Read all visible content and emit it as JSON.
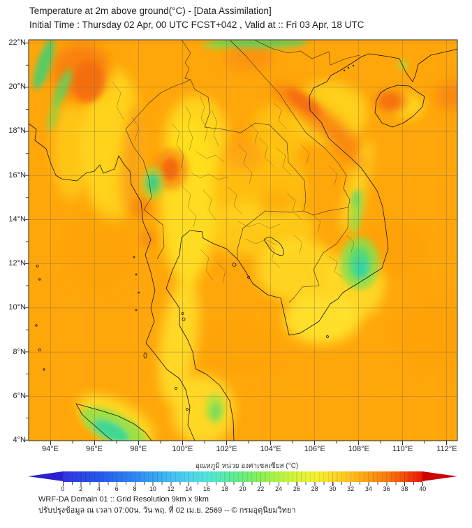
{
  "header": {
    "title": "Temperature at 2m above ground(°C) - [Data Assimilation]",
    "subtitle": "Initial Time : Thursday 02 Apr, 00 UTC FCST+042 , Valid at :: Fri 03 Apr, 18 UTC"
  },
  "map": {
    "lat_labels": [
      "22°N",
      "20°N",
      "18°N",
      "16°N",
      "14°N",
      "12°N",
      "10°N",
      "8°N",
      "6°N",
      "4°N"
    ],
    "lon_labels": [
      "94°E",
      "96°E",
      "98°E",
      "100°E",
      "102°E",
      "104°E",
      "106°E",
      "108°E",
      "110°E",
      "112°E"
    ],
    "sea_base_color": "#FFA60A",
    "land_warm_color": "#FFE135",
    "hot_spot_color": "#F4690B",
    "cool_spot_color": "#2FD6A8"
  },
  "colorbar": {
    "label": "อุณหภูมิ หน่วย องศาเซลเซียส (°C)",
    "ticks": [
      "0",
      "2",
      "4",
      "6",
      "8",
      "10",
      "12",
      "14",
      "16",
      "18",
      "20",
      "22",
      "24",
      "26",
      "28",
      "30",
      "32",
      "34",
      "36",
      "38",
      "40"
    ],
    "under_range_color": "#2a20cf",
    "over_range_color": "#cc0400"
  },
  "footer": {
    "line1": "WRF-DA Domain 01 :: Grid Resolution 9km x 9km",
    "line2": "ปรับปรุงข้อมูล ณ เวลา 07:00น. วัน พฤ. ที่ 02 เม.ย. 2569 -- © กรมอุตุนิยมวิทยา"
  }
}
